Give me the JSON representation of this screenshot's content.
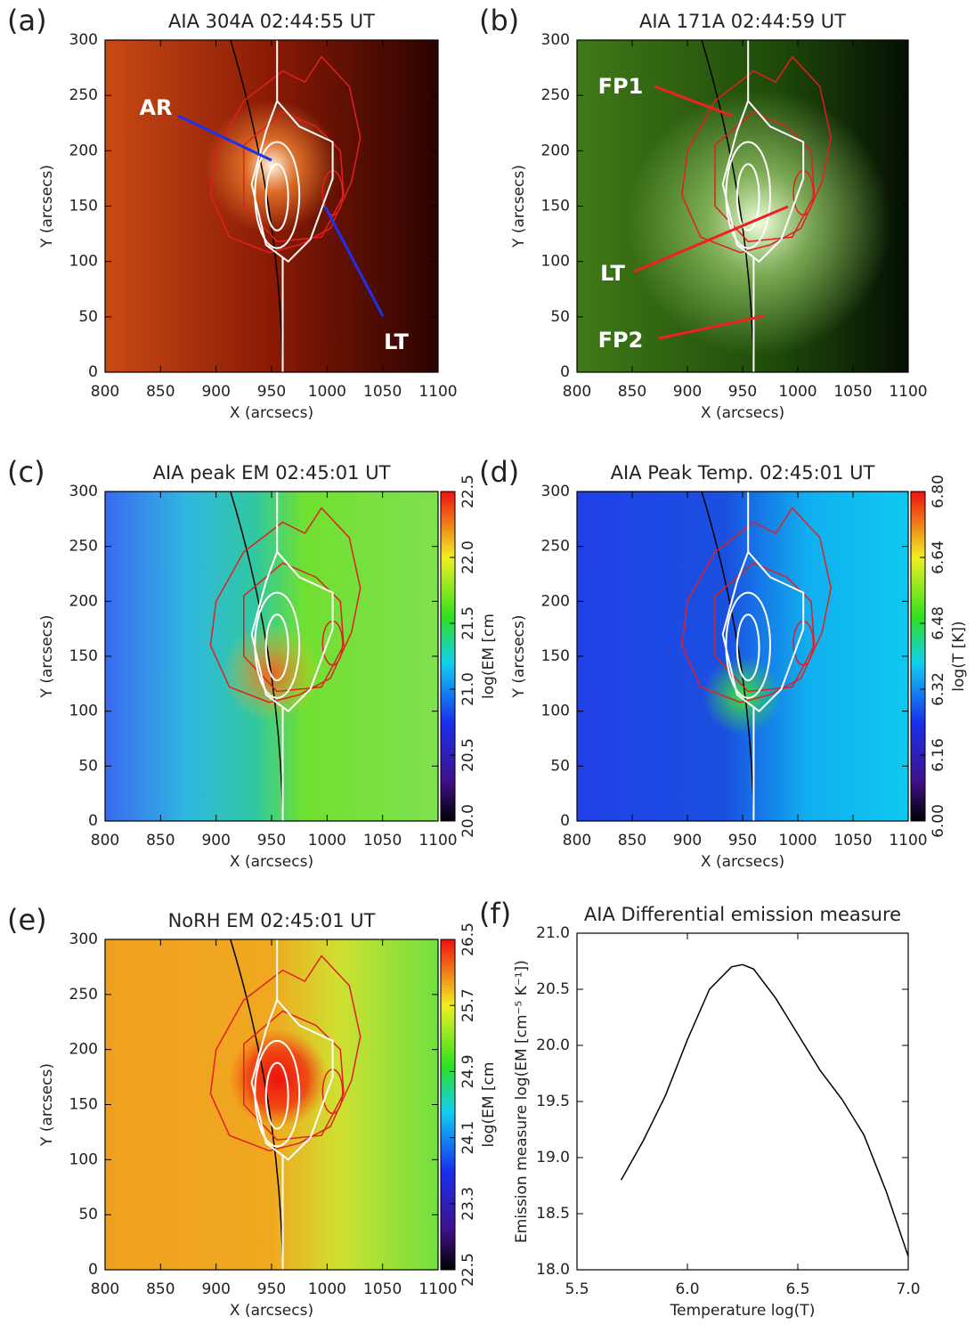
{
  "chart_data": [
    {
      "type": "image",
      "panel_label": "(a)",
      "title": "AIA 304A 02:44:55 UT",
      "x_label": "X (arcsecs)",
      "y_label": "Y (arcsecs)",
      "xlim": [
        800,
        1100
      ],
      "ylim": [
        0,
        300
      ],
      "xticks": [
        800,
        850,
        900,
        950,
        1000,
        1050,
        1100
      ],
      "yticks": [
        0,
        50,
        100,
        150,
        200,
        250,
        300
      ],
      "annotations": [
        "AR",
        "LT"
      ]
    },
    {
      "type": "image",
      "panel_label": "(b)",
      "title": "AIA 171A 02:44:59 UT",
      "x_label": "X (arcsecs)",
      "y_label": "Y (arcsecs)",
      "xlim": [
        800,
        1100
      ],
      "ylim": [
        0,
        300
      ],
      "xticks": [
        800,
        850,
        900,
        950,
        1000,
        1050,
        1100
      ],
      "yticks": [
        0,
        50,
        100,
        150,
        200,
        250,
        300
      ],
      "annotations": [
        "FP1",
        "LT",
        "FP2"
      ]
    },
    {
      "type": "image",
      "panel_label": "(c)",
      "title": "AIA peak EM 02:45:01 UT",
      "x_label": "X (arcsecs)",
      "y_label": "Y (arcsecs)",
      "xlim": [
        800,
        1100
      ],
      "ylim": [
        0,
        300
      ],
      "xticks": [
        800,
        850,
        900,
        950,
        1000,
        1050,
        1100
      ],
      "yticks": [
        0,
        50,
        100,
        150,
        200,
        250,
        300
      ],
      "colorbar": {
        "label": "log(EM [cm",
        "lim": [
          20,
          22.5
        ],
        "ticks": [
          {
            "value": 20,
            "label": "20.0"
          },
          20.5,
          {
            "value": 21,
            "label": "21.0"
          },
          21.5,
          {
            "value": 22,
            "label": "22.0"
          },
          22.5
        ]
      }
    },
    {
      "type": "image",
      "panel_label": "(d)",
      "title": "AIA Peak Temp.  02:45:01 UT",
      "x_label": "X (arcsecs)",
      "y_label": "Y (arcsecs)",
      "xlim": [
        800,
        1100
      ],
      "ylim": [
        0,
        300
      ],
      "xticks": [
        800,
        850,
        900,
        950,
        1000,
        1050,
        1100
      ],
      "yticks": [
        0,
        50,
        100,
        150,
        200,
        250,
        300
      ],
      "colorbar": {
        "label": "log(T [K])",
        "lim": [
          6,
          6.8
        ],
        "ticks": [
          {
            "value": 6,
            "label": "6.00"
          },
          6.16,
          6.32,
          6.48,
          6.64,
          {
            "value": 6.8,
            "label": "6.80"
          }
        ]
      }
    },
    {
      "type": "image",
      "panel_label": "(e)",
      "title": "NoRH EM 02:45:01 UT",
      "x_label": "X (arcsecs)",
      "y_label": "Y (arcsecs)",
      "xlim": [
        800,
        1100
      ],
      "ylim": [
        0,
        300
      ],
      "xticks": [
        800,
        850,
        900,
        950,
        1000,
        1050,
        1100
      ],
      "yticks": [
        0,
        50,
        100,
        150,
        200,
        250,
        300
      ],
      "colorbar": {
        "label": "log(EM [cm",
        "lim": [
          22.5,
          26.5
        ],
        "ticks": [
          22.5,
          23.3,
          24.1,
          24.9,
          25.7,
          26.5
        ]
      }
    },
    {
      "type": "line",
      "panel_label": "(f)",
      "title": "AIA Differential emission measure",
      "x_label": "Temperature  log(T)",
      "y_label": "Emission measure  log(EM [cm⁻⁵ K⁻¹])",
      "xlim": [
        5.5,
        7
      ],
      "ylim": [
        18,
        21
      ],
      "xticks": [
        5.5,
        {
          "value": 6,
          "label": "6.0"
        },
        6.5,
        {
          "value": 7,
          "label": "7.0"
        }
      ],
      "yticks": [
        {
          "value": 18,
          "label": "18.0"
        },
        18.5,
        {
          "value": 19,
          "label": "19.0"
        },
        19.5,
        {
          "value": 20,
          "label": "20.0"
        },
        20.5,
        {
          "value": 21,
          "label": "21.0"
        }
      ],
      "x": [
        5.7,
        5.8,
        5.9,
        6.0,
        6.1,
        6.2,
        6.25,
        6.3,
        6.4,
        6.5,
        6.6,
        6.7,
        6.8,
        6.9,
        7.0
      ],
      "values": [
        18.8,
        19.15,
        19.55,
        20.05,
        20.5,
        20.7,
        20.72,
        20.68,
        20.42,
        20.1,
        19.78,
        19.52,
        19.2,
        18.7,
        18.12
      ],
      "color": "#000000"
    }
  ]
}
